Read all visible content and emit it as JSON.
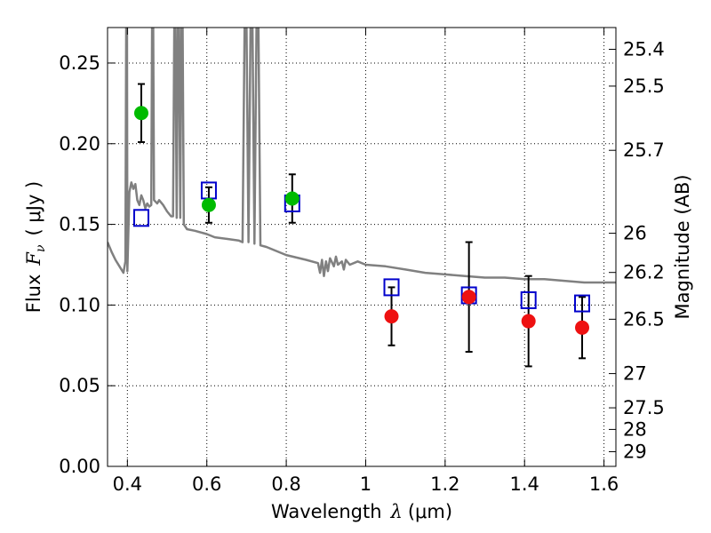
{
  "chart_data": {
    "type": "scatter",
    "title": "",
    "xlabel": "Wavelength",
    "xlabel_symbol": "λ",
    "xlabel_unit": "(μm)",
    "ylabel": "Flux",
    "ylabel_symbol": "F",
    "ylabel_subscript": "ν",
    "ylabel_unit": "( μJy )",
    "y2label": "Magnitude (AB)",
    "xlim": [
      0.35,
      1.63
    ],
    "ylim": [
      0.0,
      0.272
    ],
    "grid": true,
    "x_ticks": [
      {
        "value": 0.4,
        "label": "0.4"
      },
      {
        "value": 0.6,
        "label": "0.6"
      },
      {
        "value": 0.8,
        "label": "0.8"
      },
      {
        "value": 1.0,
        "label": "1"
      },
      {
        "value": 1.2,
        "label": "1.2"
      },
      {
        "value": 1.4,
        "label": "1.4"
      },
      {
        "value": 1.6,
        "label": "1.6"
      }
    ],
    "y_ticks": [
      {
        "value": 0.0,
        "label": "0.00"
      },
      {
        "value": 0.05,
        "label": "0.05"
      },
      {
        "value": 0.1,
        "label": "0.10"
      },
      {
        "value": 0.15,
        "label": "0.15"
      },
      {
        "value": 0.2,
        "label": "0.20"
      },
      {
        "value": 0.25,
        "label": "0.25"
      }
    ],
    "y2_ticks": [
      {
        "flux": 0.2585,
        "label": "25.4"
      },
      {
        "flux": 0.2357,
        "label": "25.5"
      },
      {
        "flux": 0.1959,
        "label": "25.7"
      },
      {
        "flux": 0.1445,
        "label": "26"
      },
      {
        "flux": 0.1202,
        "label": "26.2"
      },
      {
        "flux": 0.0912,
        "label": "26.5"
      },
      {
        "flux": 0.0575,
        "label": "27"
      },
      {
        "flux": 0.0363,
        "label": "27.5"
      },
      {
        "flux": 0.0229,
        "label": "28"
      },
      {
        "flux": 0.0091,
        "label": "29"
      }
    ],
    "series": [
      {
        "kind": "model_spectrum",
        "color": "#808080",
        "points": [
          [
            0.35,
            0.139
          ],
          [
            0.36,
            0.133
          ],
          [
            0.37,
            0.128
          ],
          [
            0.38,
            0.124
          ],
          [
            0.39,
            0.12
          ],
          [
            0.395,
            0.127
          ],
          [
            0.397,
            0.272
          ],
          [
            0.399,
            0.272
          ],
          [
            0.4,
            0.121
          ],
          [
            0.405,
            0.17
          ],
          [
            0.41,
            0.176
          ],
          [
            0.415,
            0.172
          ],
          [
            0.42,
            0.175
          ],
          [
            0.425,
            0.165
          ],
          [
            0.43,
            0.162
          ],
          [
            0.435,
            0.168
          ],
          [
            0.44,
            0.165
          ],
          [
            0.445,
            0.16
          ],
          [
            0.45,
            0.163
          ],
          [
            0.455,
            0.161
          ],
          [
            0.46,
            0.162
          ],
          [
            0.462,
            0.272
          ],
          [
            0.465,
            0.272
          ],
          [
            0.467,
            0.165
          ],
          [
            0.475,
            0.163
          ],
          [
            0.48,
            0.165
          ],
          [
            0.49,
            0.162
          ],
          [
            0.5,
            0.158
          ],
          [
            0.51,
            0.155
          ],
          [
            0.515,
            0.155
          ],
          [
            0.518,
            0.272
          ],
          [
            0.521,
            0.272
          ],
          [
            0.524,
            0.154
          ],
          [
            0.527,
            0.272
          ],
          [
            0.53,
            0.272
          ],
          [
            0.533,
            0.154
          ],
          [
            0.536,
            0.272
          ],
          [
            0.539,
            0.272
          ],
          [
            0.542,
            0.15
          ],
          [
            0.55,
            0.147
          ],
          [
            0.57,
            0.146
          ],
          [
            0.6,
            0.144
          ],
          [
            0.62,
            0.142
          ],
          [
            0.65,
            0.141
          ],
          [
            0.68,
            0.14
          ],
          [
            0.69,
            0.139
          ],
          [
            0.695,
            0.272
          ],
          [
            0.7,
            0.272
          ],
          [
            0.705,
            0.139
          ],
          [
            0.71,
            0.272
          ],
          [
            0.715,
            0.272
          ],
          [
            0.72,
            0.138
          ],
          [
            0.725,
            0.272
          ],
          [
            0.73,
            0.272
          ],
          [
            0.735,
            0.137
          ],
          [
            0.75,
            0.136
          ],
          [
            0.8,
            0.131
          ],
          [
            0.85,
            0.128
          ],
          [
            0.88,
            0.126
          ],
          [
            0.885,
            0.12
          ],
          [
            0.89,
            0.128
          ],
          [
            0.895,
            0.118
          ],
          [
            0.9,
            0.127
          ],
          [
            0.905,
            0.121
          ],
          [
            0.91,
            0.129
          ],
          [
            0.92,
            0.124
          ],
          [
            0.925,
            0.13
          ],
          [
            0.93,
            0.125
          ],
          [
            0.94,
            0.127
          ],
          [
            0.945,
            0.122
          ],
          [
            0.95,
            0.128
          ],
          [
            0.96,
            0.125
          ],
          [
            0.98,
            0.127
          ],
          [
            1.0,
            0.125
          ],
          [
            1.05,
            0.124
          ],
          [
            1.1,
            0.122
          ],
          [
            1.15,
            0.12
          ],
          [
            1.2,
            0.119
          ],
          [
            1.25,
            0.118
          ],
          [
            1.3,
            0.117
          ],
          [
            1.35,
            0.117
          ],
          [
            1.4,
            0.116
          ],
          [
            1.45,
            0.116
          ],
          [
            1.5,
            0.115
          ],
          [
            1.55,
            0.114
          ],
          [
            1.6,
            0.114
          ],
          [
            1.63,
            0.114
          ]
        ]
      },
      {
        "kind": "model_photometry",
        "marker": "open-square",
        "color": "#0000cc",
        "points": [
          [
            0.435,
            0.154
          ],
          [
            0.605,
            0.171
          ],
          [
            0.815,
            0.163
          ],
          [
            1.065,
            0.111
          ],
          [
            1.26,
            0.106
          ],
          [
            1.41,
            0.103
          ],
          [
            1.545,
            0.101
          ]
        ]
      },
      {
        "kind": "observed",
        "marker": "filled-circle",
        "color": "#00bb00",
        "points": [
          {
            "x": 0.435,
            "y": 0.219,
            "yerr": 0.018
          },
          {
            "x": 0.605,
            "y": 0.162,
            "yerr": 0.011
          },
          {
            "x": 0.815,
            "y": 0.166,
            "yerr": 0.015
          }
        ]
      },
      {
        "kind": "observed",
        "marker": "filled-circle",
        "color": "#ee1111",
        "points": [
          {
            "x": 1.065,
            "y": 0.093,
            "yerr": 0.018
          },
          {
            "x": 1.26,
            "y": 0.105,
            "yerr": 0.034
          },
          {
            "x": 1.41,
            "y": 0.09,
            "yerr": 0.028
          },
          {
            "x": 1.545,
            "y": 0.086,
            "yerr": 0.019
          }
        ]
      }
    ]
  }
}
